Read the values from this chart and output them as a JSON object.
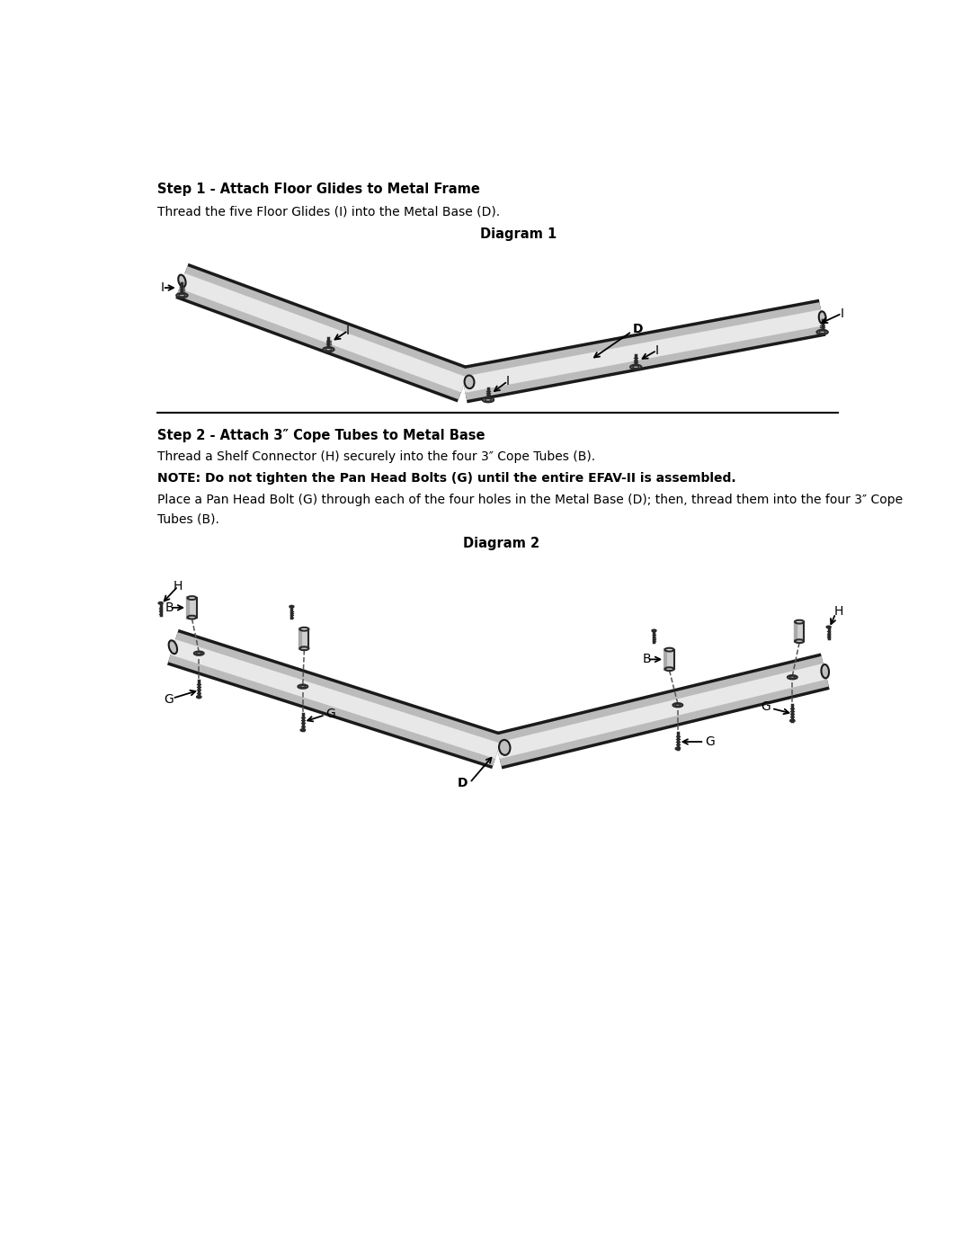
{
  "page_width": 10.8,
  "page_height": 13.97,
  "bg_color": "#ffffff",
  "ml": 0.52,
  "mr": 0.52,
  "step1_title": "Step 1 - Attach Floor Glides to Metal Frame",
  "step1_body_plain": "Thread the five Floor Glides (I) into the Metal Base (D).",
  "diagram1_title": "Diagram 1",
  "step2_title": "Step 2 - Attach 3″ Cope Tubes to Metal Base",
  "step2_line1": "Thread a Shelf Connector (H) securely into the four 3″ Cope Tubes (B).",
  "step2_note": "NOTE: Do not tighten the Pan Head Bolts (G) until the entire EFAV-II is assembled.",
  "step2_line2a": "Place a Pan Head Bolt (G) through each of the four holes in the Metal Base (D); then, thread them into the four 3″ Cope",
  "step2_line2b": "Tubes (B).",
  "diagram2_title": "Diagram 2"
}
